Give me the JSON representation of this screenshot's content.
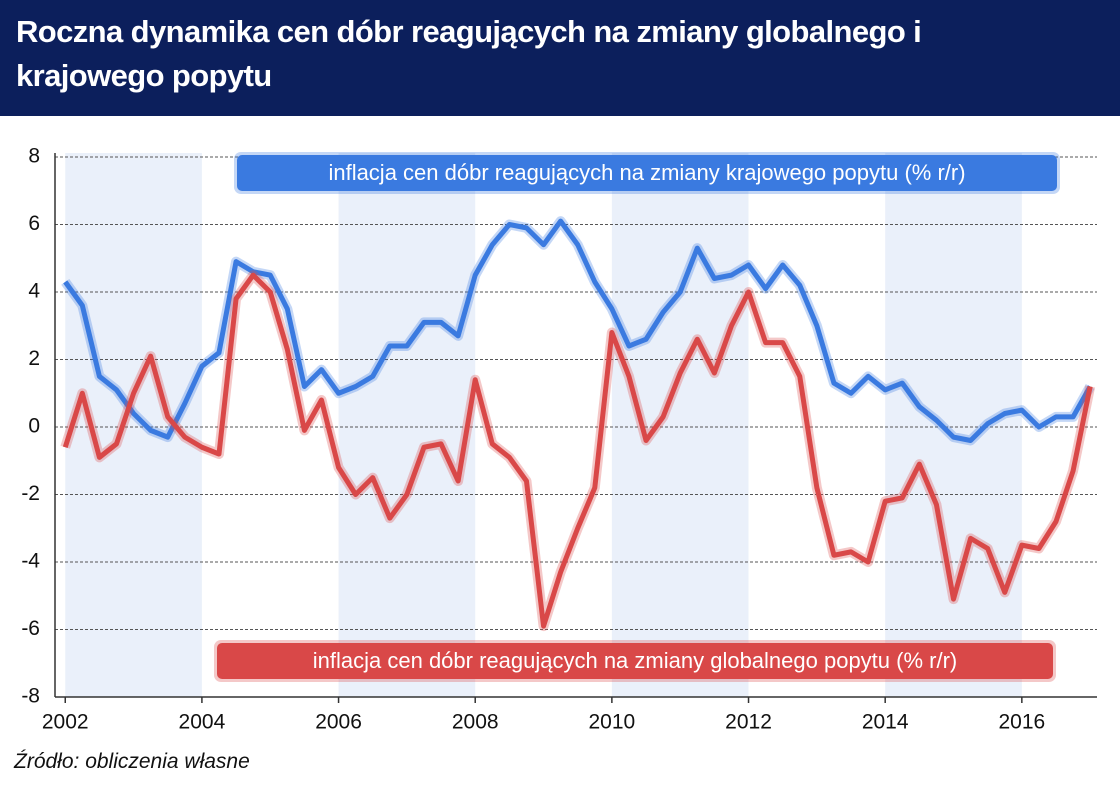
{
  "chart_data": {
    "type": "line",
    "title": "Roczna dynamika cen dóbr reagujących na zmiany globalnego i krajowego popytu",
    "source": "Źródło: obliczenia własne",
    "x": [
      2002,
      2002.25,
      2002.5,
      2002.75,
      2003,
      2003.25,
      2003.5,
      2003.75,
      2004,
      2004.25,
      2004.5,
      2004.75,
      2005,
      2005.25,
      2005.5,
      2005.75,
      2006,
      2006.25,
      2006.5,
      2006.75,
      2007,
      2007.25,
      2007.5,
      2007.75,
      2008,
      2008.25,
      2008.5,
      2008.75,
      2009,
      2009.25,
      2009.5,
      2009.75,
      2010,
      2010.25,
      2010.5,
      2010.75,
      2011,
      2011.25,
      2011.5,
      2011.75,
      2012,
      2012.25,
      2012.5,
      2012.75,
      2013,
      2013.25,
      2013.5,
      2013.75,
      2014,
      2014.25,
      2014.5,
      2014.75,
      2015,
      2015.25,
      2015.5,
      2015.75,
      2016,
      2016.25,
      2016.5,
      2016.75,
      2017
    ],
    "series": [
      {
        "name": "inflacja cen dóbr reagujących na zmiany krajowego popytu (% r/r)",
        "color": "#3a7ae0",
        "values": [
          4.3,
          3.6,
          1.5,
          1.1,
          0.4,
          -0.1,
          -0.3,
          0.7,
          1.8,
          2.2,
          4.9,
          4.6,
          4.5,
          3.5,
          1.2,
          1.7,
          1.0,
          1.2,
          1.5,
          2.4,
          2.4,
          3.1,
          3.1,
          2.7,
          4.5,
          5.4,
          6.0,
          5.9,
          5.4,
          6.1,
          5.4,
          4.3,
          3.5,
          2.4,
          2.6,
          3.4,
          4.0,
          5.3,
          4.4,
          4.5,
          4.8,
          4.1,
          4.8,
          4.2,
          3.0,
          1.3,
          1.0,
          1.5,
          1.1,
          1.3,
          0.6,
          0.2,
          -0.3,
          -0.4,
          0.1,
          0.4,
          0.5,
          0.0,
          0.3,
          0.3,
          1.2
        ]
      },
      {
        "name": "inflacja cen dóbr reagujących na zmiany globalnego popytu (% r/r)",
        "color": "#d94848",
        "values": [
          -0.6,
          1.0,
          -0.9,
          -0.5,
          1.0,
          2.1,
          0.3,
          -0.3,
          -0.6,
          -0.8,
          3.8,
          4.5,
          4.0,
          2.3,
          -0.1,
          0.8,
          -1.2,
          -2.0,
          -1.5,
          -2.7,
          -2.0,
          -0.6,
          -0.5,
          -1.6,
          1.4,
          -0.5,
          -0.9,
          -1.6,
          -5.9,
          -4.3,
          -3.0,
          -1.8,
          2.8,
          1.5,
          -0.4,
          0.3,
          1.6,
          2.6,
          1.6,
          3.0,
          4.0,
          2.5,
          2.5,
          1.5,
          -1.8,
          -3.8,
          -3.7,
          -4.0,
          -2.2,
          -2.1,
          -1.1,
          -2.3,
          -5.1,
          -3.3,
          -3.6,
          -4.9,
          -3.5,
          -3.6,
          -2.8,
          -1.3,
          1.2
        ]
      }
    ],
    "xlim": [
      2001.85,
      2017.1
    ],
    "xticks": [
      2002,
      2004,
      2006,
      2008,
      2010,
      2012,
      2014,
      2016
    ],
    "ylim": [
      -8,
      8
    ],
    "yticks": [
      8,
      6,
      4,
      2,
      0,
      -2,
      -4,
      -6,
      -8
    ],
    "grid": true
  }
}
